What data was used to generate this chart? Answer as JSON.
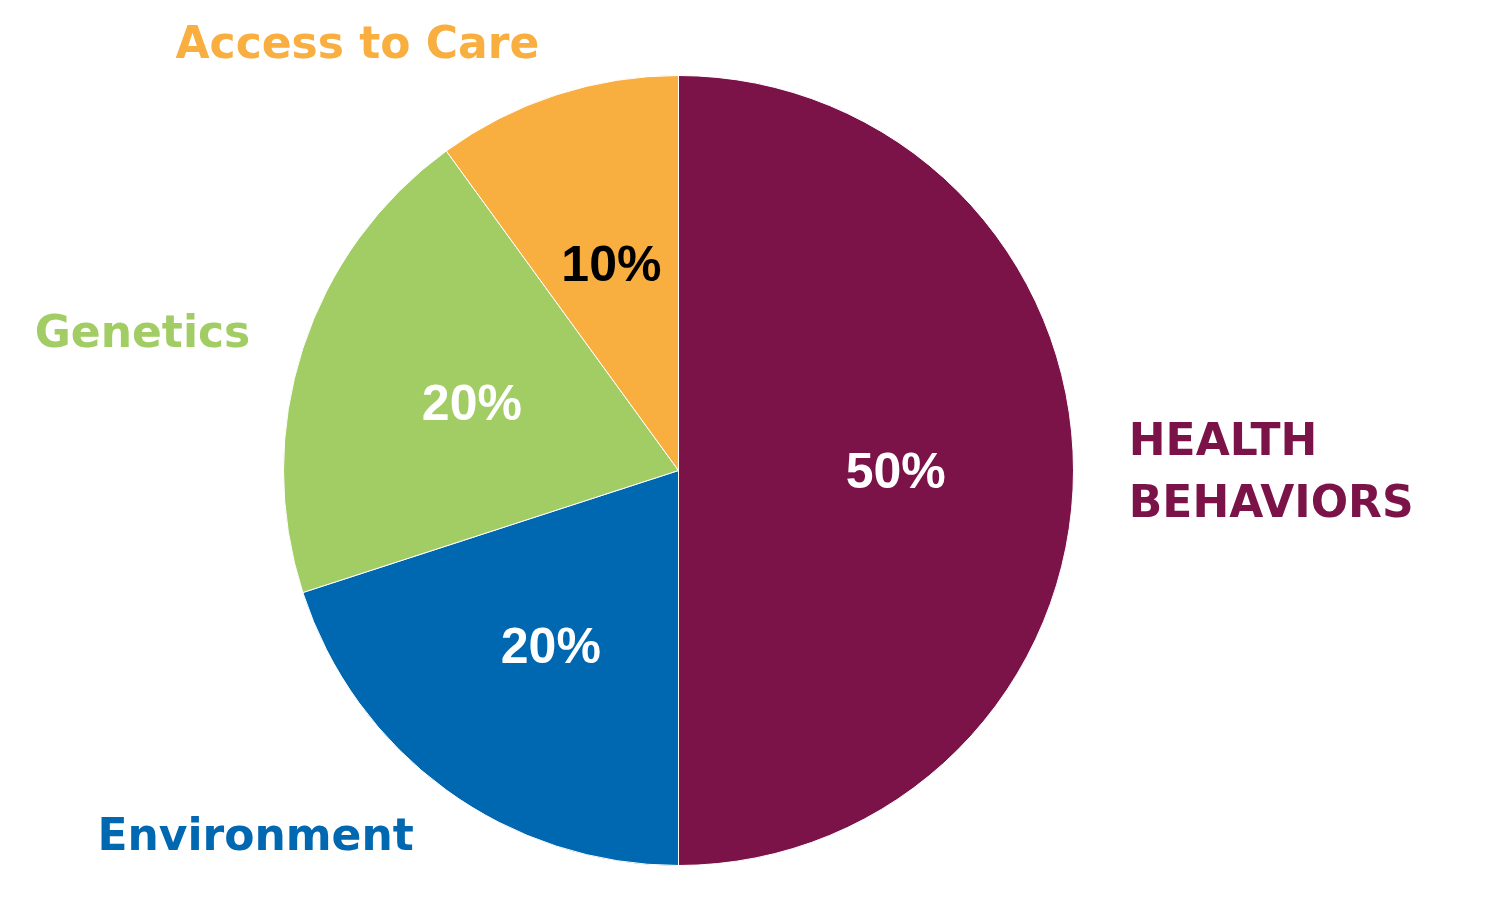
{
  "chart_data": {
    "type": "pie",
    "categories": [
      "HEALTH BEHAVIORS",
      "Environment",
      "Genetics",
      "Access to Care"
    ],
    "values": [
      50,
      20,
      20,
      10
    ],
    "colors": [
      "#7b1349",
      "#0067b1",
      "#a2cd65",
      "#f9ae40"
    ],
    "value_labels": [
      "50%",
      "20%",
      "20%",
      "10%"
    ]
  }
}
